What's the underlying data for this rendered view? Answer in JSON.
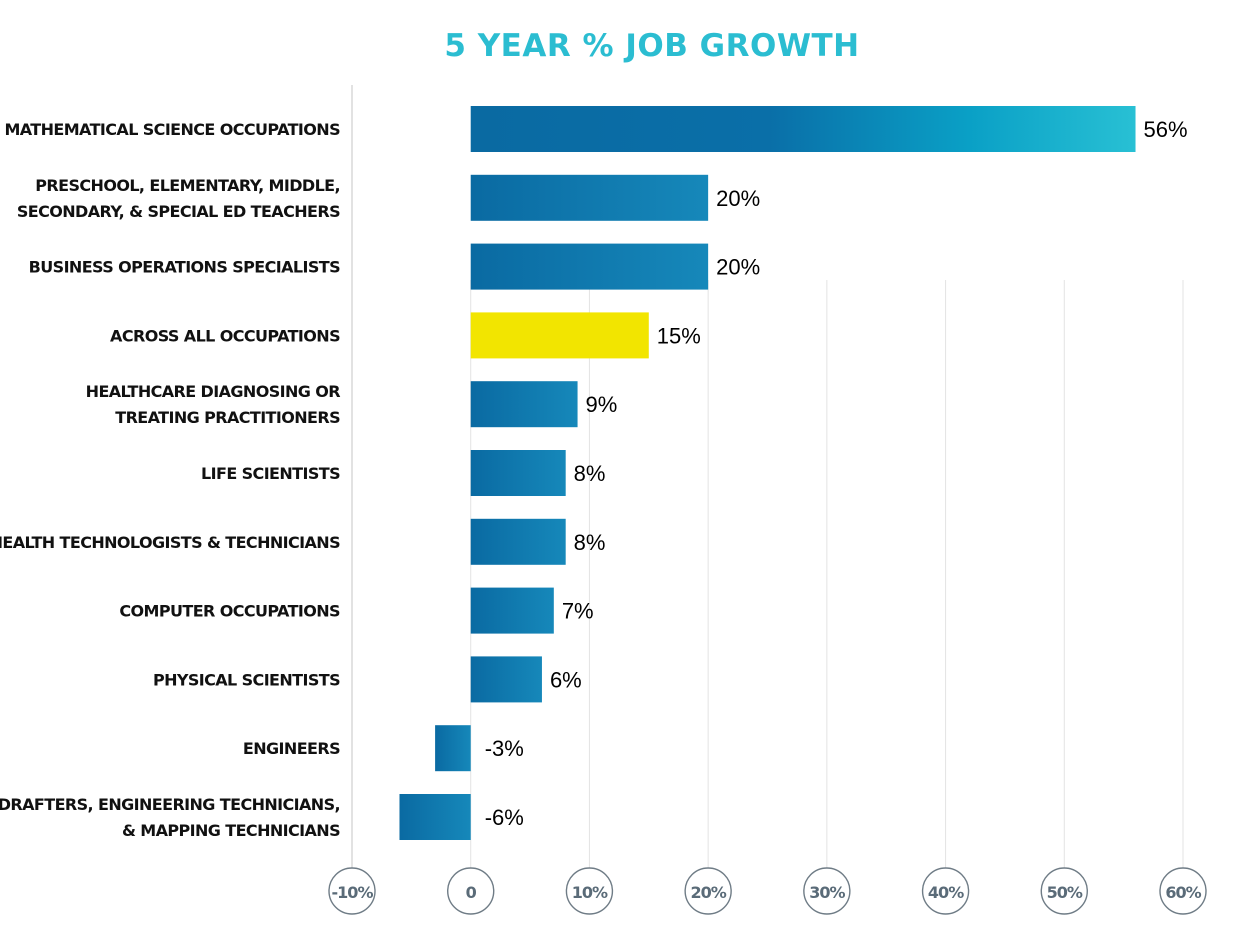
{
  "chart_data": {
    "type": "bar",
    "orientation": "horizontal",
    "title": "5 YEAR % JOB GROWTH",
    "categories": [
      "MATHEMATICAL SCIENCE OCCUPATIONS",
      "PRESCHOOL, ELEMENTARY, MIDDLE, SECONDARY, & SPECIAL ED TEACHERS",
      "BUSINESS OPERATIONS SPECIALISTS",
      "ACROSS ALL OCCUPATIONS",
      "HEALTHCARE DIAGNOSING OR TREATING PRACTITIONERS",
      "LIFE SCIENTISTS",
      "HEALTH TECHNOLOGISTS & TECHNICIANS",
      "COMPUTER OCCUPATIONS",
      "PHYSICAL SCIENTISTS",
      "ENGINEERS",
      "DRAFTERS, ENGINEERING TECHNICIANS, & MAPPING TECHNICIANS"
    ],
    "category_lines": [
      [
        "MATHEMATICAL SCIENCE OCCUPATIONS"
      ],
      [
        "PRESCHOOL, ELEMENTARY, MIDDLE,",
        "SECONDARY, & SPECIAL ED TEACHERS"
      ],
      [
        "BUSINESS OPERATIONS SPECIALISTS"
      ],
      [
        "ACROSS ALL OCCUPATIONS"
      ],
      [
        "HEALTHCARE DIAGNOSING OR",
        "TREATING PRACTITIONERS"
      ],
      [
        "LIFE SCIENTISTS"
      ],
      [
        "HEALTH TECHNOLOGISTS & TECHNICIANS"
      ],
      [
        "COMPUTER OCCUPATIONS"
      ],
      [
        "PHYSICAL SCIENTISTS"
      ],
      [
        "ENGINEERS"
      ],
      [
        "DRAFTERS, ENGINEERING TECHNICIANS,",
        "& MAPPING TECHNICIANS"
      ]
    ],
    "values": [
      56,
      20,
      20,
      15,
      9,
      8,
      8,
      7,
      6,
      -3,
      -6
    ],
    "value_labels": [
      "56%",
      "20%",
      "20%",
      "15%",
      "9%",
      "8%",
      "8%",
      "7%",
      "6%",
      "-3%",
      "-6%"
    ],
    "highlight_index": 3,
    "xlim": [
      -10,
      60
    ],
    "xticks": [
      -10,
      0,
      10,
      20,
      30,
      40,
      50,
      60
    ],
    "xtick_labels": [
      "-10%",
      "0",
      "10%",
      "20%",
      "30%",
      "40%",
      "50%",
      "60%"
    ],
    "xlabel": "",
    "ylabel": "",
    "grid": true,
    "legend": "none",
    "colors": {
      "title": "#2bbdd1",
      "bar": "#137fb2",
      "bar_dark": "#0a6aa2",
      "bar_gradient_end": "#28c0d4",
      "highlight": "#f2e500",
      "grid": "#e3e3e3",
      "tick_circle_stroke": "#6f7c86",
      "tick_text": "#5a6b78"
    }
  }
}
